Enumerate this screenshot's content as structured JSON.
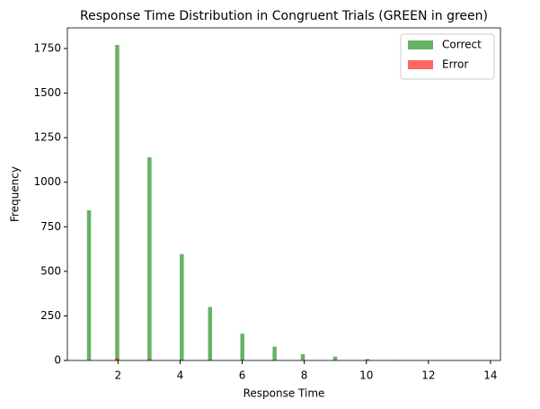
{
  "chart_data": {
    "type": "histogram",
    "title": "Response Time Distribution in Congruent Trials (GREEN in green)",
    "x_label": "Response Time",
    "y_label": "Frequency",
    "bins": [
      1,
      1.13,
      1.26,
      1.39,
      1.52,
      1.65,
      1.78,
      1.91,
      2.04,
      2.17,
      2.3,
      2.43,
      2.56,
      2.69,
      2.82,
      2.95,
      3.08,
      3.21,
      3.34,
      3.47,
      3.6,
      3.73,
      3.86,
      3.99,
      4.12,
      4.25,
      4.38,
      4.51,
      4.64,
      4.77,
      4.9,
      5.03,
      5.16,
      5.29,
      5.42,
      5.55,
      5.68,
      5.81,
      5.94,
      6.07,
      6.2,
      6.33,
      6.46,
      6.59,
      6.72,
      6.85,
      6.98,
      7.11,
      7.24,
      7.37,
      7.5,
      7.63,
      7.76,
      7.89,
      8.02,
      8.15,
      8.28,
      8.41,
      8.54,
      8.67,
      8.8,
      8.93,
      9.06,
      9.19,
      9.32,
      9.45,
      9.58,
      9.71,
      9.84,
      9.97,
      10.1,
      10.23,
      10.36,
      10.49,
      10.62,
      10.75,
      10.88,
      11.01,
      11.14,
      11.27,
      11.4,
      11.53,
      11.66,
      11.79,
      11.92,
      12.05,
      12.18,
      12.31,
      12.44,
      12.57,
      12.7,
      12.83,
      12.96,
      13.09,
      13.22,
      13.35,
      13.48,
      13.61,
      13.74,
      13.87,
      14
    ],
    "series": [
      {
        "name": "Correct",
        "color": "green",
        "values": [
          843,
          0,
          0,
          0,
          0,
          0,
          0,
          1770,
          0,
          0,
          0,
          0,
          0,
          0,
          0,
          1140,
          0,
          0,
          0,
          0,
          0,
          0,
          0,
          597,
          0,
          0,
          0,
          0,
          0,
          0,
          300,
          0,
          0,
          0,
          0,
          0,
          0,
          0,
          150,
          0,
          0,
          0,
          0,
          0,
          0,
          0,
          78,
          0,
          0,
          0,
          0,
          0,
          0,
          35,
          0,
          0,
          0,
          0,
          0,
          0,
          0,
          22,
          0,
          0,
          0,
          0,
          0,
          0,
          0,
          8,
          0,
          0,
          0,
          0,
          0,
          0,
          3,
          0,
          0,
          0,
          0,
          0,
          0,
          0,
          2,
          0,
          0,
          0,
          0,
          0,
          0,
          0,
          1,
          0,
          0,
          0,
          0,
          0,
          0,
          2
        ]
      },
      {
        "name": "Error",
        "color": "red",
        "values": [
          0,
          0,
          0,
          0,
          0,
          0,
          0,
          12,
          0,
          0,
          0,
          0,
          0,
          0,
          0,
          6,
          0,
          0,
          0,
          0,
          0,
          0,
          0,
          3,
          0,
          0,
          0,
          0,
          0,
          0,
          2,
          0,
          0,
          0,
          0,
          0,
          0,
          0,
          0,
          0,
          0,
          0,
          0,
          0,
          0,
          0,
          0,
          0,
          0,
          0,
          0,
          0,
          0,
          0,
          0,
          0,
          0,
          0,
          0,
          0,
          0,
          0,
          0,
          0,
          0,
          0,
          0,
          0,
          0,
          0,
          0,
          0,
          0,
          0,
          0,
          0,
          0,
          0,
          0,
          0,
          0,
          0,
          0,
          0,
          0,
          0,
          0,
          0,
          0,
          0,
          0,
          0,
          0,
          0,
          0,
          0,
          0,
          0,
          0,
          0
        ]
      }
    ],
    "alpha": 0.6,
    "xlim": [
      0.37,
      14.32
    ],
    "ylim": [
      0,
      1866
    ],
    "xticks": [
      2,
      4,
      6,
      8,
      10,
      12,
      14
    ],
    "yticks": [
      0,
      250,
      500,
      750,
      1000,
      1250,
      1500,
      1750
    ],
    "legend": "upper right"
  }
}
